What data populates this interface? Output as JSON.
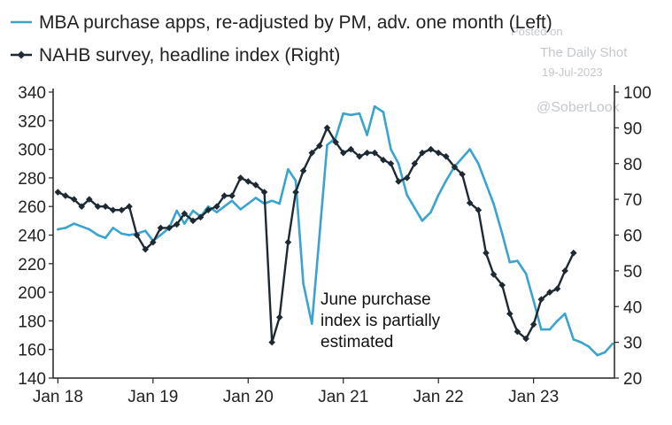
{
  "chart_data": {
    "type": "line",
    "legend": [
      {
        "label": "MBA purchase apps, re-adjusted by PM, adv. one month (Left)",
        "color": "#3aa3cf",
        "marker": "none"
      },
      {
        "label": "NAHB survey, headline index (Right)",
        "color": "#1e2a33",
        "marker": "diamond"
      }
    ],
    "x_ticks": [
      {
        "label": "Jan 18",
        "t": 2018.0
      },
      {
        "label": "Jan 19",
        "t": 2019.0
      },
      {
        "label": "Jan 20",
        "t": 2020.0
      },
      {
        "label": "Jan 21",
        "t": 2021.0
      },
      {
        "label": "Jan 22",
        "t": 2022.0
      },
      {
        "label": "Jan 23",
        "t": 2023.0
      }
    ],
    "xlim": [
      2017.95,
      2023.85
    ],
    "left_axis": {
      "ylim": [
        140,
        340
      ],
      "ticks": [
        140,
        160,
        180,
        200,
        220,
        240,
        260,
        280,
        300,
        320,
        340
      ]
    },
    "right_axis": {
      "ylim": [
        20,
        100
      ],
      "ticks": [
        20,
        30,
        40,
        50,
        60,
        70,
        80,
        90,
        100
      ]
    },
    "series": [
      {
        "name": "MBA purchase apps, re-adjusted by PM, adv. one month (Left)",
        "axis": "left",
        "points": [
          [
            2018.0,
            244
          ],
          [
            2018.08,
            245
          ],
          [
            2018.17,
            248
          ],
          [
            2018.25,
            246
          ],
          [
            2018.33,
            244
          ],
          [
            2018.42,
            240
          ],
          [
            2018.5,
            238
          ],
          [
            2018.58,
            245
          ],
          [
            2018.67,
            241
          ],
          [
            2018.75,
            240
          ],
          [
            2018.83,
            241
          ],
          [
            2018.92,
            243
          ],
          [
            2019.0,
            236
          ],
          [
            2019.08,
            240
          ],
          [
            2019.17,
            245
          ],
          [
            2019.25,
            257
          ],
          [
            2019.33,
            248
          ],
          [
            2019.42,
            257
          ],
          [
            2019.5,
            253
          ],
          [
            2019.58,
            260
          ],
          [
            2019.67,
            256
          ],
          [
            2019.75,
            260
          ],
          [
            2019.83,
            264
          ],
          [
            2019.92,
            258
          ],
          [
            2020.0,
            262
          ],
          [
            2020.08,
            266
          ],
          [
            2020.17,
            262
          ],
          [
            2020.25,
            264
          ],
          [
            2020.33,
            262
          ],
          [
            2020.42,
            286
          ],
          [
            2020.5,
            278
          ],
          [
            2020.58,
            206
          ],
          [
            2020.67,
            178
          ],
          [
            2020.75,
            240
          ],
          [
            2020.83,
            303
          ],
          [
            2020.92,
            308
          ],
          [
            2021.0,
            325
          ],
          [
            2021.08,
            324
          ],
          [
            2021.17,
            325
          ],
          [
            2021.25,
            310
          ],
          [
            2021.33,
            330
          ],
          [
            2021.42,
            326
          ],
          [
            2021.5,
            300
          ],
          [
            2021.58,
            290
          ],
          [
            2021.67,
            268
          ],
          [
            2021.75,
            259
          ],
          [
            2021.83,
            250
          ],
          [
            2021.92,
            256
          ],
          [
            2022.0,
            268
          ],
          [
            2022.08,
            278
          ],
          [
            2022.17,
            288
          ],
          [
            2022.25,
            294
          ],
          [
            2022.33,
            300
          ],
          [
            2022.42,
            290
          ],
          [
            2022.5,
            276
          ],
          [
            2022.58,
            262
          ],
          [
            2022.67,
            241
          ],
          [
            2022.75,
            221
          ],
          [
            2022.83,
            222
          ],
          [
            2022.92,
            213
          ],
          [
            2023.0,
            194
          ],
          [
            2023.08,
            174
          ],
          [
            2023.17,
            174
          ],
          [
            2023.25,
            180
          ],
          [
            2023.33,
            185
          ],
          [
            2023.42,
            167
          ],
          [
            2023.5,
            165
          ],
          [
            2023.58,
            162
          ],
          [
            2023.67,
            156
          ],
          [
            2023.75,
            158
          ],
          [
            2023.83,
            164
          ]
        ]
      },
      {
        "name": "NAHB survey, headline index (Right)",
        "axis": "right",
        "points": [
          [
            2018.0,
            72
          ],
          [
            2018.08,
            71
          ],
          [
            2018.17,
            70
          ],
          [
            2018.25,
            68
          ],
          [
            2018.33,
            70
          ],
          [
            2018.42,
            68
          ],
          [
            2018.5,
            68
          ],
          [
            2018.58,
            67
          ],
          [
            2018.67,
            67
          ],
          [
            2018.75,
            68
          ],
          [
            2018.83,
            60
          ],
          [
            2018.92,
            56
          ],
          [
            2019.0,
            58
          ],
          [
            2019.08,
            62
          ],
          [
            2019.17,
            62
          ],
          [
            2019.25,
            63
          ],
          [
            2019.33,
            66
          ],
          [
            2019.42,
            64
          ],
          [
            2019.5,
            65
          ],
          [
            2019.58,
            67
          ],
          [
            2019.67,
            68
          ],
          [
            2019.75,
            71
          ],
          [
            2019.83,
            71
          ],
          [
            2019.92,
            76
          ],
          [
            2020.0,
            75
          ],
          [
            2020.08,
            74
          ],
          [
            2020.17,
            72
          ],
          [
            2020.25,
            30
          ],
          [
            2020.33,
            37
          ],
          [
            2020.42,
            58
          ],
          [
            2020.5,
            72
          ],
          [
            2020.58,
            78
          ],
          [
            2020.67,
            83
          ],
          [
            2020.75,
            85
          ],
          [
            2020.83,
            90
          ],
          [
            2020.92,
            86
          ],
          [
            2021.0,
            83
          ],
          [
            2021.08,
            84
          ],
          [
            2021.17,
            82
          ],
          [
            2021.25,
            83
          ],
          [
            2021.33,
            83
          ],
          [
            2021.42,
            81
          ],
          [
            2021.5,
            80
          ],
          [
            2021.58,
            75
          ],
          [
            2021.67,
            76
          ],
          [
            2021.75,
            80
          ],
          [
            2021.83,
            83
          ],
          [
            2021.92,
            84
          ],
          [
            2022.0,
            83
          ],
          [
            2022.08,
            82
          ],
          [
            2022.17,
            79
          ],
          [
            2022.25,
            77
          ],
          [
            2022.33,
            69
          ],
          [
            2022.42,
            67
          ],
          [
            2022.5,
            55
          ],
          [
            2022.58,
            49
          ],
          [
            2022.67,
            46
          ],
          [
            2022.75,
            38
          ],
          [
            2022.83,
            33
          ],
          [
            2022.92,
            31
          ],
          [
            2023.0,
            35
          ],
          [
            2023.08,
            42
          ],
          [
            2023.17,
            44
          ],
          [
            2023.25,
            45
          ],
          [
            2023.33,
            50
          ],
          [
            2023.42,
            55
          ]
        ]
      }
    ],
    "annotation": [
      "June purchase",
      "index is partially",
      "estimated"
    ]
  },
  "watermark": {
    "posted_on": "Posted on",
    "source": "The Daily Shot",
    "date": "19-Jul-2023",
    "handle": "@SoberLook"
  },
  "colors": {
    "mba": "#3aa3cf",
    "nahb": "#1e2a33",
    "axis": "#222222"
  }
}
